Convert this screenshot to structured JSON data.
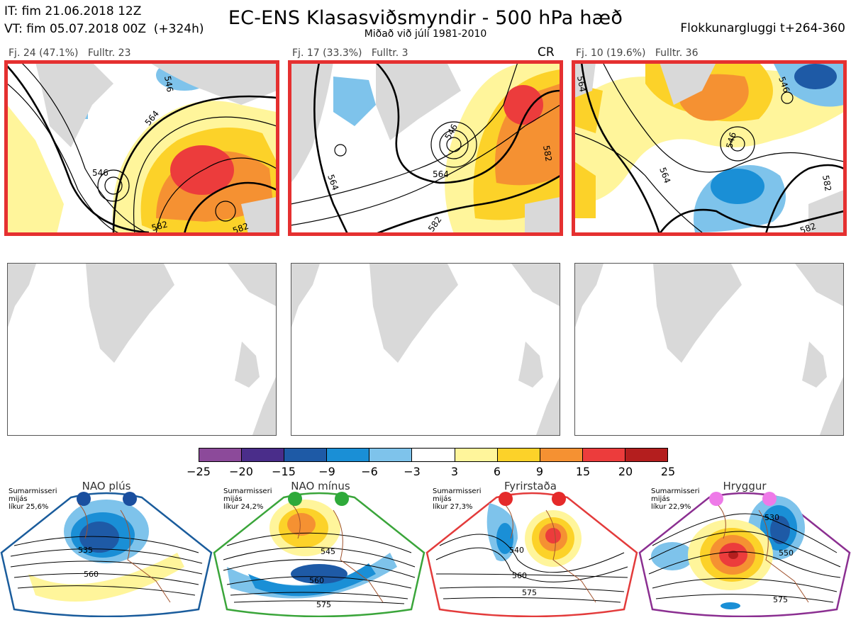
{
  "header": {
    "it_line": "IT: fim 21.06.2018 12Z",
    "vt_line": "VT: fim 05.07.2018 00Z  (+324h)",
    "title": "EC-ENS Klasasviðsmyndir - 500 hPa hæð",
    "subtitle": "Miðað við júlí 1981-2010",
    "window": "Flokkunargluggi t+264-360"
  },
  "clusters": [
    {
      "label": "Fj. 24 (47.1%)",
      "rep": "Fulltr. 23",
      "tag": "",
      "contours": [
        "546",
        "564",
        "582",
        "546",
        "582"
      ]
    },
    {
      "label": "Fj. 17 (33.3%)",
      "rep": "Fulltr. 3",
      "tag": "CR",
      "contours": [
        "546",
        "564",
        "582",
        "564",
        "582"
      ]
    },
    {
      "label": "Fj. 10 (19.6%)",
      "rep": "Fulltr. 36",
      "tag": "",
      "contours": [
        "564",
        "546",
        "546",
        "564",
        "582",
        "582"
      ]
    }
  ],
  "colorbar": {
    "ticks": [
      "−25",
      "−20",
      "−15",
      "−9",
      "−6",
      "−3",
      "3",
      "6",
      "9",
      "15",
      "20",
      "25"
    ],
    "colors": [
      "#8c4a9a",
      "#4a2d8a",
      "#1e5aa6",
      "#1a8fd6",
      "#7ec3eb",
      "#ffffff",
      "#fff59b",
      "#fcd229",
      "#f59132",
      "#ec3c3c",
      "#b41e1e"
    ]
  },
  "regimes": [
    {
      "name": "NAO plús",
      "season": "Sumarmisseri",
      "metric": "mijás",
      "prob": "líkur 25,6%",
      "dot_color": "#1a4f9f",
      "border": "#1a5c9c",
      "contours": [
        "535",
        "560"
      ]
    },
    {
      "name": "NAO mínus",
      "season": "Sumarmisseri",
      "metric": "mijás",
      "prob": "líkur 24,2%",
      "dot_color": "#2eaa3a",
      "border": "#3aa53a",
      "contours": [
        "545",
        "560",
        "575"
      ]
    },
    {
      "name": "Fyrirstaða",
      "season": "Sumarmisseri",
      "metric": "mijás",
      "prob": "líkur 27,3%",
      "dot_color": "#e52a2a",
      "border": "#e33b3b",
      "contours": [
        "540",
        "560",
        "575"
      ]
    },
    {
      "name": "Hryggur",
      "season": "Sumarmisseri",
      "metric": "mijás",
      "prob": "líkur 22,9%",
      "dot_color": "#ee7ae8",
      "border": "#8b2f91",
      "contours": [
        "530",
        "550",
        "575"
      ]
    }
  ]
}
